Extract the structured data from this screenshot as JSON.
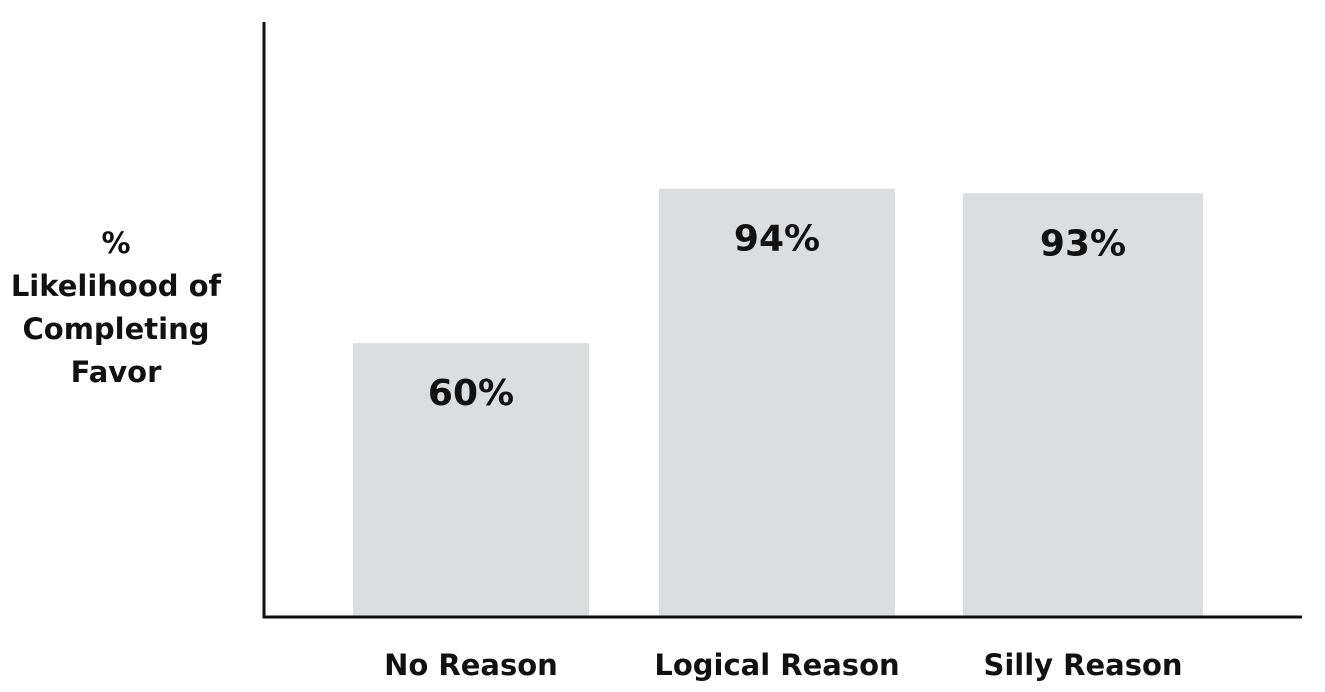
{
  "chart_data": {
    "type": "bar",
    "title": "",
    "xlabel": "",
    "ylabel_lines": [
      "%",
      "Likelihood of",
      "Completing",
      "Favor"
    ],
    "categories": [
      "No Reason",
      "Logical Reason",
      "Silly Reason"
    ],
    "values": [
      60,
      94,
      93
    ],
    "data_labels": [
      "60%",
      "94%",
      "93%"
    ],
    "ylim": [
      0,
      117
    ],
    "grid": false,
    "legend": "none"
  },
  "colors": {
    "bar": "#dcdddf",
    "axis": "#111111",
    "text": "#111111"
  }
}
